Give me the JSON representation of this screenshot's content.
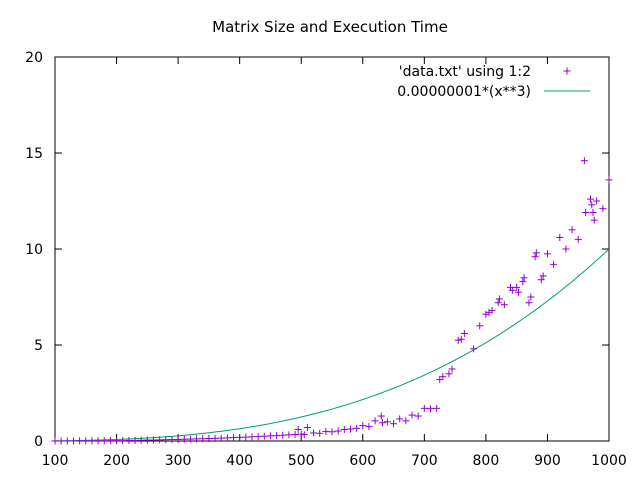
{
  "chart_data": {
    "type": "scatter",
    "title": "Matrix Size and Execution Time",
    "xlabel": "",
    "ylabel": "",
    "xlim": [
      100,
      1000
    ],
    "ylim": [
      0,
      20
    ],
    "x_ticks": [
      100,
      200,
      300,
      400,
      500,
      600,
      700,
      800,
      900,
      1000
    ],
    "y_ticks": [
      0,
      5,
      10,
      15,
      20
    ],
    "grid": false,
    "legend_position": "top-right",
    "colors": {
      "points": "#9400d3",
      "curve": "#009e73",
      "axes": "#000000"
    },
    "series": [
      {
        "name": "'data.txt' using 1:2",
        "type": "scatter",
        "marker": "plus",
        "points": [
          [
            100,
            0.0
          ],
          [
            110,
            0.0
          ],
          [
            120,
            0.0
          ],
          [
            130,
            0.0
          ],
          [
            140,
            0.01
          ],
          [
            150,
            0.01
          ],
          [
            160,
            0.01
          ],
          [
            170,
            0.01
          ],
          [
            180,
            0.01
          ],
          [
            190,
            0.02
          ],
          [
            200,
            0.02
          ],
          [
            210,
            0.02
          ],
          [
            220,
            0.03
          ],
          [
            230,
            0.03
          ],
          [
            240,
            0.04
          ],
          [
            250,
            0.05
          ],
          [
            260,
            0.05
          ],
          [
            270,
            0.06
          ],
          [
            280,
            0.07
          ],
          [
            290,
            0.08
          ],
          [
            300,
            0.08
          ],
          [
            310,
            0.09
          ],
          [
            320,
            0.1
          ],
          [
            330,
            0.11
          ],
          [
            340,
            0.12
          ],
          [
            350,
            0.13
          ],
          [
            360,
            0.14
          ],
          [
            370,
            0.15
          ],
          [
            380,
            0.16
          ],
          [
            390,
            0.18
          ],
          [
            400,
            0.19
          ],
          [
            410,
            0.2
          ],
          [
            420,
            0.22
          ],
          [
            430,
            0.23
          ],
          [
            440,
            0.25
          ],
          [
            450,
            0.27
          ],
          [
            460,
            0.28
          ],
          [
            470,
            0.3
          ],
          [
            480,
            0.32
          ],
          [
            490,
            0.34
          ],
          [
            495,
            0.6
          ],
          [
            500,
            0.36
          ],
          [
            505,
            0.33
          ],
          [
            510,
            0.7
          ],
          [
            520,
            0.42
          ],
          [
            530,
            0.4
          ],
          [
            540,
            0.5
          ],
          [
            550,
            0.48
          ],
          [
            560,
            0.52
          ],
          [
            570,
            0.6
          ],
          [
            580,
            0.62
          ],
          [
            590,
            0.66
          ],
          [
            600,
            0.8
          ],
          [
            610,
            0.75
          ],
          [
            620,
            1.05
          ],
          [
            630,
            1.3
          ],
          [
            632,
            0.95
          ],
          [
            640,
            1.0
          ],
          [
            650,
            0.9
          ],
          [
            660,
            1.15
          ],
          [
            670,
            1.05
          ],
          [
            680,
            1.35
          ],
          [
            690,
            1.3
          ],
          [
            700,
            1.7
          ],
          [
            710,
            1.68
          ],
          [
            720,
            1.7
          ],
          [
            725,
            3.2
          ],
          [
            730,
            3.35
          ],
          [
            740,
            3.5
          ],
          [
            745,
            3.75
          ],
          [
            755,
            5.25
          ],
          [
            760,
            5.3
          ],
          [
            765,
            5.6
          ],
          [
            780,
            4.8
          ],
          [
            790,
            6.0
          ],
          [
            800,
            6.6
          ],
          [
            805,
            6.7
          ],
          [
            810,
            6.8
          ],
          [
            820,
            7.2
          ],
          [
            822,
            7.4
          ],
          [
            830,
            7.1
          ],
          [
            840,
            8.0
          ],
          [
            843,
            7.85
          ],
          [
            850,
            8.0
          ],
          [
            853,
            7.75
          ],
          [
            860,
            8.3
          ],
          [
            862,
            8.5
          ],
          [
            870,
            7.2
          ],
          [
            873,
            7.5
          ],
          [
            880,
            9.6
          ],
          [
            882,
            9.8
          ],
          [
            890,
            8.4
          ],
          [
            893,
            8.6
          ],
          [
            900,
            9.75
          ],
          [
            910,
            9.2
          ],
          [
            920,
            10.6
          ],
          [
            930,
            10.0
          ],
          [
            940,
            11.0
          ],
          [
            950,
            10.5
          ],
          [
            960,
            14.6
          ],
          [
            962,
            11.9
          ],
          [
            970,
            12.6
          ],
          [
            972,
            12.3
          ],
          [
            974,
            11.9
          ],
          [
            976,
            11.5
          ],
          [
            980,
            12.5
          ],
          [
            990,
            12.1
          ],
          [
            1000,
            13.6
          ]
        ]
      },
      {
        "name": "0.00000001*(x**3)",
        "type": "line",
        "function": "0.00000001*(x**3)"
      }
    ]
  }
}
